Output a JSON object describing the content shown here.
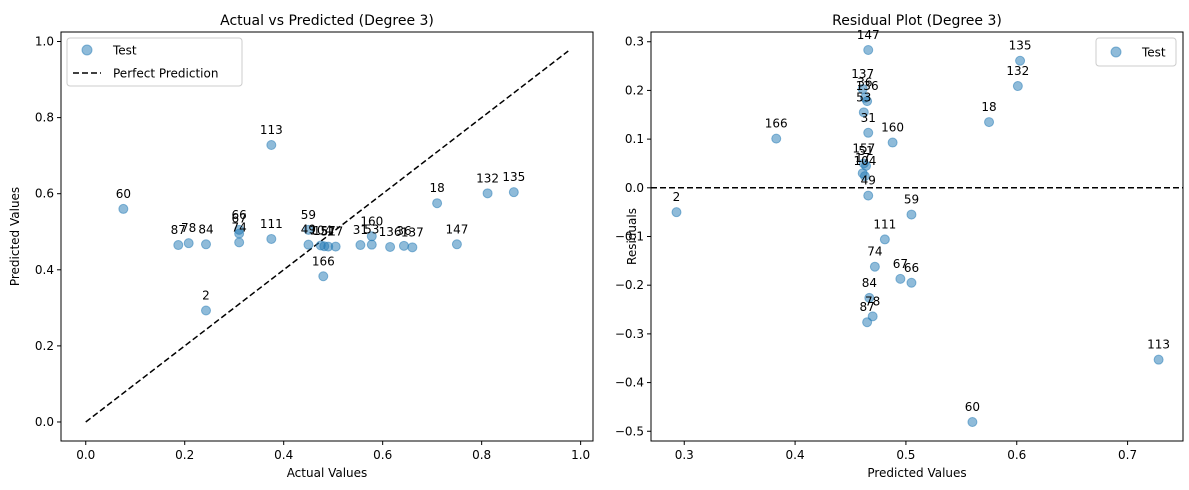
{
  "chart_data": [
    {
      "type": "scatter",
      "title": "Actual vs Predicted (Degree 3)",
      "xlabel": "Actual Values",
      "ylabel": "Predicted Values",
      "xlim": [
        -0.05,
        1.025
      ],
      "ylim": [
        -0.05,
        1.025
      ],
      "xticks": [
        0.0,
        0.2,
        0.4,
        0.6,
        0.8,
        1.0
      ],
      "yticks": [
        0.0,
        0.2,
        0.4,
        0.6,
        0.8,
        1.0
      ],
      "xtick_labels": [
        "0.0",
        "0.2",
        "0.4",
        "0.6",
        "0.8",
        "1.0"
      ],
      "ytick_labels": [
        "0.0",
        "0.2",
        "0.4",
        "0.6",
        "0.8",
        "1.0"
      ],
      "grid": false,
      "legend": {
        "placement": "top-left",
        "entries": [
          "Test",
          "Perfect Prediction"
        ]
      },
      "reference_line": {
        "name": "Perfect Prediction",
        "x": [
          0.0,
          0.975
        ],
        "y": [
          0.0,
          0.975
        ],
        "style": "dashed",
        "color": "#000000"
      },
      "series": [
        {
          "name": "Test",
          "color": "#1f77b4",
          "points": [
            {
              "x": 0.076,
              "y": 0.56,
              "label": "60"
            },
            {
              "x": 0.187,
              "y": 0.465,
              "label": "87"
            },
            {
              "x": 0.208,
              "y": 0.47,
              "label": "78"
            },
            {
              "x": 0.243,
              "y": 0.467,
              "label": "84"
            },
            {
              "x": 0.243,
              "y": 0.293,
              "label": "2"
            },
            {
              "x": 0.31,
              "y": 0.505,
              "label": "66"
            },
            {
              "x": 0.31,
              "y": 0.495,
              "label": "67"
            },
            {
              "x": 0.31,
              "y": 0.472,
              "label": "74"
            },
            {
              "x": 0.375,
              "y": 0.728,
              "label": "113"
            },
            {
              "x": 0.375,
              "y": 0.481,
              "label": "111"
            },
            {
              "x": 0.45,
              "y": 0.505,
              "label": "59"
            },
            {
              "x": 0.45,
              "y": 0.466,
              "label": "49"
            },
            {
              "x": 0.475,
              "y": 0.464,
              "label": "104"
            },
            {
              "x": 0.482,
              "y": 0.462,
              "label": "157"
            },
            {
              "x": 0.49,
              "y": 0.461,
              "label": "51"
            },
            {
              "x": 0.48,
              "y": 0.383,
              "label": "166"
            },
            {
              "x": 0.505,
              "y": 0.461,
              "label": "17"
            },
            {
              "x": 0.555,
              "y": 0.465,
              "label": "31"
            },
            {
              "x": 0.578,
              "y": 0.488,
              "label": "160"
            },
            {
              "x": 0.578,
              "y": 0.466,
              "label": "53"
            },
            {
              "x": 0.615,
              "y": 0.46,
              "label": "136"
            },
            {
              "x": 0.643,
              "y": 0.463,
              "label": "36"
            },
            {
              "x": 0.66,
              "y": 0.459,
              "label": "137"
            },
            {
              "x": 0.71,
              "y": 0.575,
              "label": "18"
            },
            {
              "x": 0.75,
              "y": 0.467,
              "label": "147"
            },
            {
              "x": 0.812,
              "y": 0.601,
              "label": "132"
            },
            {
              "x": 0.865,
              "y": 0.604,
              "label": "135"
            }
          ]
        }
      ]
    },
    {
      "type": "scatter",
      "title": "Residual Plot (Degree 3)",
      "xlabel": "Predicted Values",
      "ylabel": "Residuals",
      "xlim": [
        0.27,
        0.75
      ],
      "ylim": [
        -0.52,
        0.32
      ],
      "xticks": [
        0.3,
        0.4,
        0.5,
        0.6,
        0.7
      ],
      "yticks": [
        -0.5,
        -0.4,
        -0.3,
        -0.2,
        -0.1,
        0.0,
        0.1,
        0.2,
        0.3
      ],
      "xtick_labels": [
        "0.3",
        "0.4",
        "0.5",
        "0.6",
        "0.7"
      ],
      "ytick_labels": [
        "−0.5",
        "−0.4",
        "−0.3",
        "−0.2",
        "−0.1",
        "0.0",
        "0.1",
        "0.2",
        "0.3"
      ],
      "grid": false,
      "legend": {
        "placement": "top-right",
        "entries": [
          "Test"
        ]
      },
      "reference_line": {
        "y": 0.0,
        "style": "dashed",
        "color": "#000000"
      },
      "series": [
        {
          "name": "Test",
          "color": "#1f77b4",
          "points": [
            {
              "x": 0.293,
              "y": -0.05,
              "label": "2"
            },
            {
              "x": 0.383,
              "y": 0.101,
              "label": "166"
            },
            {
              "x": 0.466,
              "y": 0.283,
              "label": "147"
            },
            {
              "x": 0.603,
              "y": 0.261,
              "label": "135"
            },
            {
              "x": 0.601,
              "y": 0.209,
              "label": "132"
            },
            {
              "x": 0.461,
              "y": 0.203,
              "label": "137"
            },
            {
              "x": 0.463,
              "y": 0.185,
              "label": "36"
            },
            {
              "x": 0.465,
              "y": 0.178,
              "label": "136"
            },
            {
              "x": 0.462,
              "y": 0.155,
              "label": "53"
            },
            {
              "x": 0.575,
              "y": 0.135,
              "label": "18"
            },
            {
              "x": 0.466,
              "y": 0.113,
              "label": "31"
            },
            {
              "x": 0.488,
              "y": 0.093,
              "label": "160"
            },
            {
              "x": 0.462,
              "y": 0.05,
              "label": "157"
            },
            {
              "x": 0.464,
              "y": 0.045,
              "label": "51"
            },
            {
              "x": 0.461,
              "y": 0.03,
              "label": "17"
            },
            {
              "x": 0.463,
              "y": 0.024,
              "label": "104"
            },
            {
              "x": 0.466,
              "y": -0.016,
              "label": "49"
            },
            {
              "x": 0.505,
              "y": -0.055,
              "label": "59"
            },
            {
              "x": 0.481,
              "y": -0.106,
              "label": "111"
            },
            {
              "x": 0.472,
              "y": -0.162,
              "label": "74"
            },
            {
              "x": 0.495,
              "y": -0.187,
              "label": "67"
            },
            {
              "x": 0.505,
              "y": -0.195,
              "label": "66"
            },
            {
              "x": 0.467,
              "y": -0.226,
              "label": "84"
            },
            {
              "x": 0.47,
              "y": -0.264,
              "label": "78"
            },
            {
              "x": 0.465,
              "y": -0.276,
              "label": "87"
            },
            {
              "x": 0.728,
              "y": -0.353,
              "label": "113"
            },
            {
              "x": 0.56,
              "y": -0.481,
              "label": "60"
            }
          ]
        }
      ]
    }
  ]
}
